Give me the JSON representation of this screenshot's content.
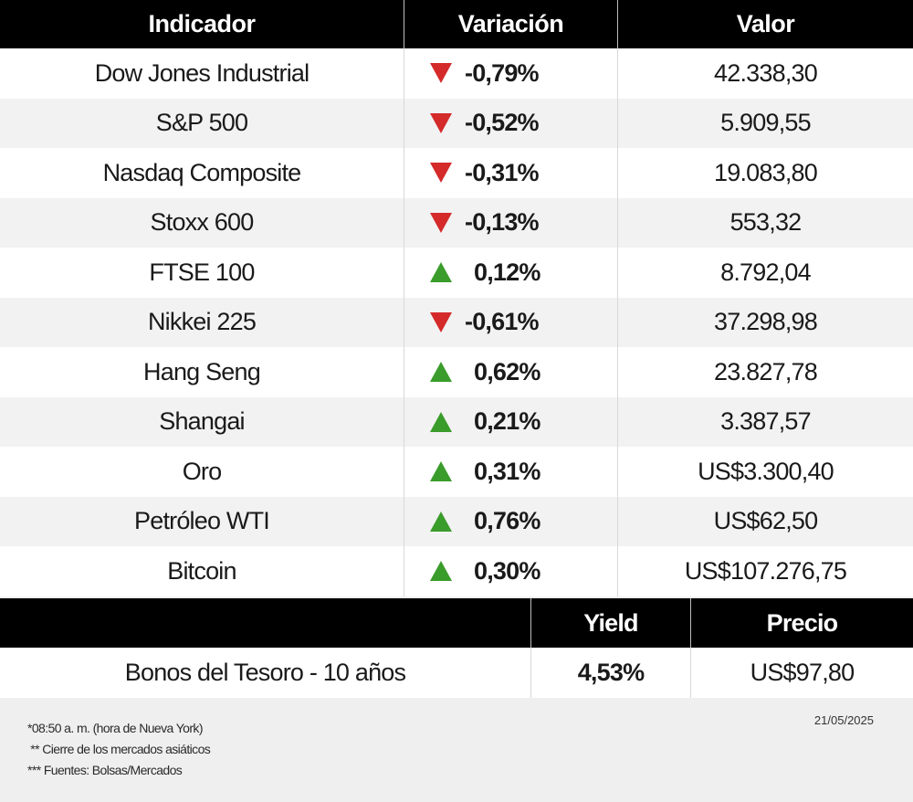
{
  "main_table": {
    "headers": [
      "Indicador",
      "Variación",
      "Valor"
    ],
    "rows": [
      {
        "indicator": "Dow Jones Industrial",
        "direction": "down",
        "change": "-0,79%",
        "value": "42.338,30"
      },
      {
        "indicator": "S&P 500",
        "direction": "down",
        "change": "-0,52%",
        "value": "5.909,55"
      },
      {
        "indicator": "Nasdaq Composite",
        "direction": "down",
        "change": "-0,31%",
        "value": "19.083,80"
      },
      {
        "indicator": "Stoxx 600",
        "direction": "down",
        "change": "-0,13%",
        "value": "553,32"
      },
      {
        "indicator": "FTSE 100",
        "direction": "up",
        "change": "0,12%",
        "value": "8.792,04"
      },
      {
        "indicator": "Nikkei 225",
        "direction": "down",
        "change": "-0,61%",
        "value": "37.298,98"
      },
      {
        "indicator": "Hang Seng",
        "direction": "up",
        "change": "0,62%",
        "value": "23.827,78"
      },
      {
        "indicator": "Shangai",
        "direction": "up",
        "change": "0,21%",
        "value": "3.387,57"
      },
      {
        "indicator": "Oro",
        "direction": "up",
        "change": "0,31%",
        "value": "US$3.300,40"
      },
      {
        "indicator": "Petróleo WTI",
        "direction": "up",
        "change": "0,76%",
        "value": "US$62,50"
      },
      {
        "indicator": "Bitcoin",
        "direction": "up",
        "change": "0,30%",
        "value": "US$107.276,75"
      }
    ]
  },
  "bond_table": {
    "headers": [
      "",
      "Yield",
      "Precio"
    ],
    "row": {
      "label": "Bonos del Tesoro - 10 años",
      "yield": "4,53%",
      "price": "US$97,80"
    }
  },
  "footer": {
    "notes": [
      "*08:50 a. m. (hora de Nueva York)",
      " ** Cierre de los mercados asiáticos",
      "*** Fuentes: Bolsas/Mercados"
    ],
    "date": "21/05/2025"
  },
  "colors": {
    "down": "#d42a2a",
    "up": "#3a9c2a",
    "header_bg": "#000000"
  }
}
